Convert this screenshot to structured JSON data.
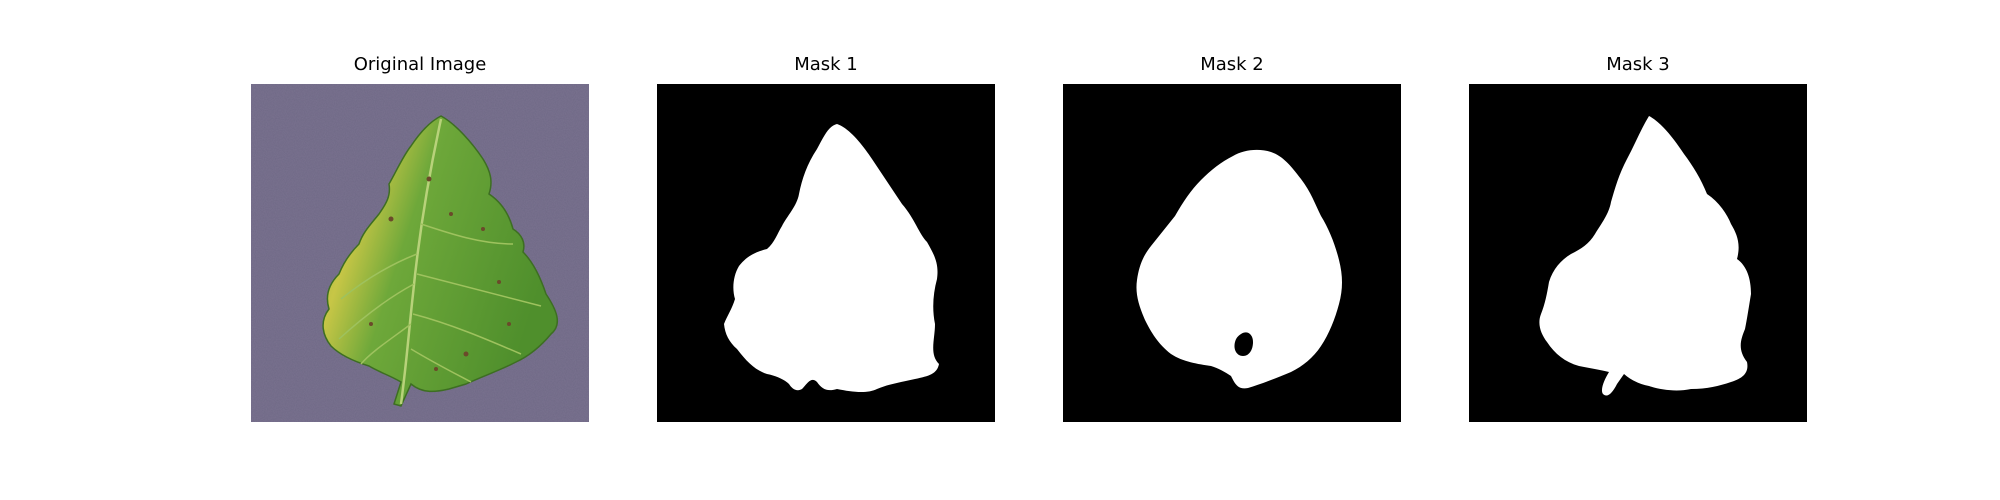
{
  "figure": {
    "panels": [
      {
        "title": "Original Image",
        "kind": "photo",
        "subject": "tomato leaf"
      },
      {
        "title": "Mask 1",
        "kind": "binary-mask"
      },
      {
        "title": "Mask 2",
        "kind": "binary-mask"
      },
      {
        "title": "Mask 3",
        "kind": "binary-mask"
      }
    ]
  },
  "colors": {
    "background": "#7a7390",
    "leaf_dark": "#4f8f2c",
    "leaf_light": "#73ad3d",
    "leaf_yellow": "#bdbf3c",
    "mask_bg": "#000000",
    "mask_fg": "#ffffff"
  }
}
